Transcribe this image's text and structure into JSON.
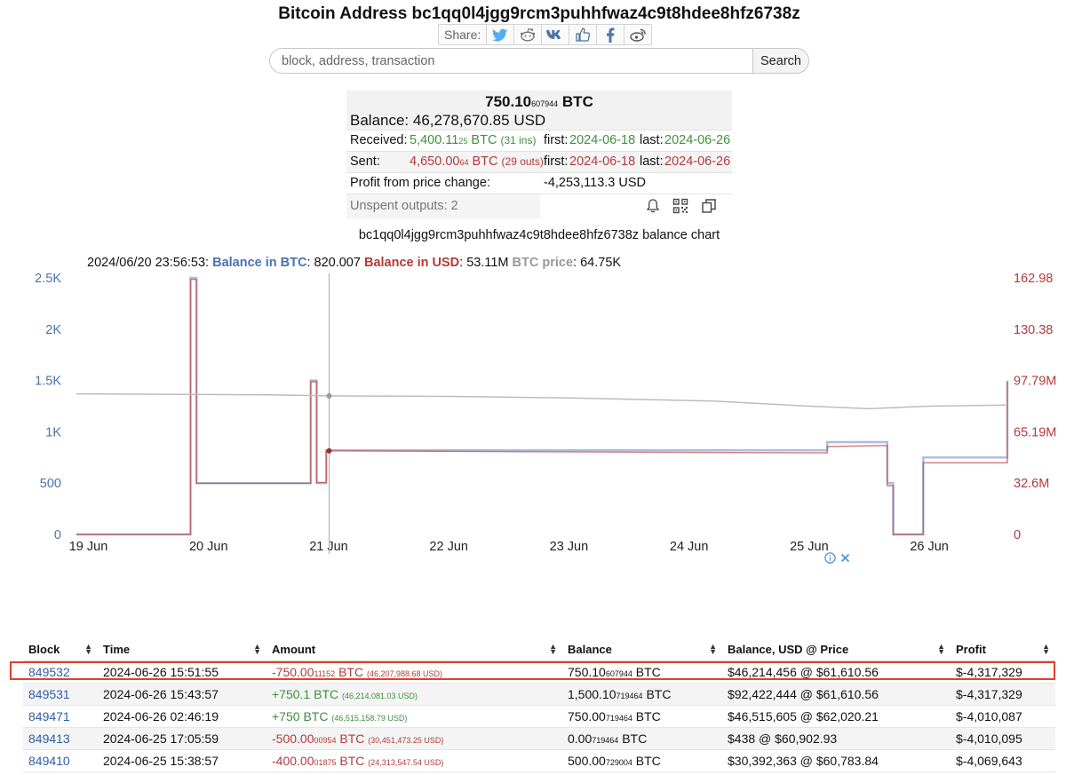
{
  "page_title": "Bitcoin Address bc1qq0l4jgg9rcm3puhhfwaz4c9t8hdee8hfz6738z",
  "share": {
    "label": "Share:",
    "buttons": [
      "twitter-icon",
      "reddit-icon",
      "vk-icon",
      "like-icon",
      "facebook-icon",
      "weibo-icon"
    ]
  },
  "search": {
    "placeholder": "block, address, transaction",
    "button": "Search"
  },
  "summary": {
    "balance_btc_main": "750.10",
    "balance_btc_small": "607944",
    "balance_btc_unit": "BTC",
    "balance_usd": "Balance: 46,278,670.85 USD",
    "received_label": "Received:",
    "received_main": "5,400.11",
    "received_small": "25",
    "received_unit": "BTC",
    "received_ins": "(31 ins)",
    "received_first_label": "first:",
    "received_first": "2024-06-18",
    "received_last_label": "last:",
    "received_last": "2024-06-26",
    "sent_label": "Sent:",
    "sent_main": "4,650.00",
    "sent_small": "64",
    "sent_unit": "BTC",
    "sent_outs": "(29 outs)",
    "sent_first_label": "first:",
    "sent_first": "2024-06-18",
    "sent_last_label": "last:",
    "sent_last": "2024-06-26",
    "profit_label": "Profit from price change:",
    "profit_value": "-4,253,113.3 USD",
    "unspent_label": "Unspent outputs: 2",
    "tool_icons": [
      "bell-icon",
      "qr-code-icon",
      "copy-icon"
    ]
  },
  "chart_title": "bc1qq0l4jgg9rcm3puhhfwaz4c9t8hdee8hfz6738z balance chart",
  "readout": {
    "time": "2024/06/20 23:56:53:",
    "btc_label": "Balance in BTC",
    "btc_value": ": 820.007",
    "usd_label": "Balance in USD",
    "usd_value": ": 53.11M",
    "price_label": "BTC price",
    "price_value": ": 64.75K"
  },
  "chart_data": {
    "type": "line",
    "x_ticks": [
      "19 Jun",
      "20 Jun",
      "21 Jun",
      "22 Jun",
      "23 Jun",
      "24 Jun",
      "25 Jun",
      "26 Jun"
    ],
    "y_left_ticks": [
      "0",
      "500",
      "1K",
      "1.5K",
      "2K",
      "2.5K"
    ],
    "y_right_ticks": [
      "0",
      "32.6M",
      "65.19M",
      "97.79M",
      "130.38",
      "162.98"
    ],
    "ylim_left": [
      0,
      2500
    ],
    "ylim_right": [
      0,
      162980000
    ],
    "xlim": [
      -0.1,
      7.65
    ],
    "crosshair_x": 2.0,
    "colors": {
      "btc": "#4a72b0",
      "usd": "#b23b3b",
      "price": "#999999"
    },
    "series": [
      {
        "name": "Balance in BTC",
        "axis": "left",
        "points": [
          [
            -0.1,
            0
          ],
          [
            0.85,
            0
          ],
          [
            0.85,
            2500
          ],
          [
            0.9,
            2500
          ],
          [
            0.9,
            500
          ],
          [
            1.85,
            500
          ],
          [
            1.85,
            1500
          ],
          [
            1.9,
            1500
          ],
          [
            1.9,
            500
          ],
          [
            1.98,
            500
          ],
          [
            1.98,
            820
          ],
          [
            6.15,
            820
          ],
          [
            6.15,
            900
          ],
          [
            6.65,
            900
          ],
          [
            6.65,
            500
          ],
          [
            6.7,
            500
          ],
          [
            6.7,
            0
          ],
          [
            6.95,
            0
          ],
          [
            6.95,
            750
          ],
          [
            7.65,
            750
          ],
          [
            7.65,
            1500
          ]
        ]
      },
      {
        "name": "Balance in USD",
        "axis": "right",
        "points": [
          [
            -0.1,
            0
          ],
          [
            0.85,
            0
          ],
          [
            0.85,
            162000000
          ],
          [
            0.9,
            162000000
          ],
          [
            0.9,
            32500000
          ],
          [
            1.85,
            32500000
          ],
          [
            1.85,
            97000000
          ],
          [
            1.9,
            97000000
          ],
          [
            1.9,
            33000000
          ],
          [
            1.98,
            33000000
          ],
          [
            1.98,
            53110000
          ],
          [
            6.15,
            51800000
          ],
          [
            6.15,
            55800000
          ],
          [
            6.65,
            56500000
          ],
          [
            6.65,
            31000000
          ],
          [
            6.7,
            31000000
          ],
          [
            6.7,
            0
          ],
          [
            6.95,
            0
          ],
          [
            6.95,
            45500000
          ],
          [
            7.65,
            45500000
          ],
          [
            7.65,
            97000000
          ]
        ]
      },
      {
        "name": "BTC price",
        "axis": "left",
        "points": [
          [
            -0.1,
            1370
          ],
          [
            1.5,
            1360
          ],
          [
            2.0,
            1350
          ],
          [
            3.0,
            1345
          ],
          [
            4.0,
            1330
          ],
          [
            5.2,
            1300
          ],
          [
            6.0,
            1250
          ],
          [
            6.5,
            1225
          ],
          [
            7.0,
            1250
          ],
          [
            7.65,
            1260
          ]
        ]
      }
    ]
  },
  "ad_icons": [
    "info-icon",
    "close-icon"
  ],
  "table": {
    "columns": [
      "Block",
      "Time",
      "Amount",
      "Balance",
      "Balance, USD @ Price",
      "Profit"
    ],
    "rows": [
      {
        "block": "849532",
        "time": "2024-06-26 15:51:55",
        "amount_main": "-750.00",
        "amount_small": "11152",
        "amount_unit": "BTC",
        "amount_usd": "(46,207,988.68 USD)",
        "amount_color": "red",
        "balance_main": "750.10",
        "balance_small": "607944",
        "balance_unit": "BTC",
        "balance_usd": "$46,214,456 @ $61,610.56",
        "profit": "$-4,317,329"
      },
      {
        "block": "849531",
        "time": "2024-06-26 15:43:57",
        "amount_main": "+750.1",
        "amount_small": "",
        "amount_unit": "BTC",
        "amount_usd": "(46,214,081.03 USD)",
        "amount_color": "green",
        "balance_main": "1,500.10",
        "balance_small": "719464",
        "balance_unit": "BTC",
        "balance_usd": "$92,422,444 @ $61,610.56",
        "profit": "$-4,317,329"
      },
      {
        "block": "849471",
        "time": "2024-06-26 02:46:19",
        "amount_main": "+750",
        "amount_small": "",
        "amount_unit": "BTC",
        "amount_usd": "(46,515,158.79 USD)",
        "amount_color": "green",
        "balance_main": "750.00",
        "balance_small": "719464",
        "balance_unit": "BTC",
        "balance_usd": "$46,515,605 @ $62,020.21",
        "profit": "$-4,010,087"
      },
      {
        "block": "849413",
        "time": "2024-06-25 17:05:59",
        "amount_main": "-500.00",
        "amount_small": "00954",
        "amount_unit": "BTC",
        "amount_usd": "(30,451,473.25 USD)",
        "amount_color": "red",
        "balance_main": "0.00",
        "balance_small": "719464",
        "balance_unit": "BTC",
        "balance_usd": "$438 @ $60,902.93",
        "profit": "$-4,010,095"
      },
      {
        "block": "849410",
        "time": "2024-06-25 15:38:57",
        "amount_main": "-400.00",
        "amount_small": "01875",
        "amount_unit": "BTC",
        "amount_usd": "(24,313,547.54 USD)",
        "amount_color": "red",
        "balance_main": "500.00",
        "balance_small": "729004",
        "balance_unit": "BTC",
        "balance_usd": "$30,392,363 @ $60,783.84",
        "profit": "$-4,069,643"
      }
    ]
  }
}
